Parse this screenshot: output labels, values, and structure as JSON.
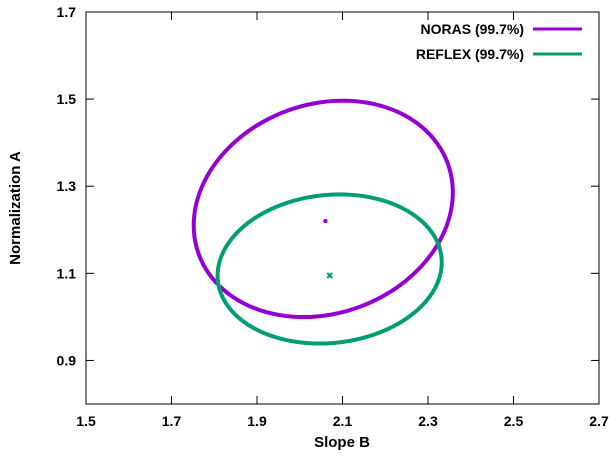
{
  "chart_data": {
    "type": "scatter",
    "xlabel": "Slope B",
    "ylabel": "Normalization A",
    "xlim": [
      1.5,
      2.7
    ],
    "ylim": [
      0.8,
      1.7
    ],
    "x_ticks": [
      "1.5",
      "1.7",
      "1.9",
      "2.1",
      "2.3",
      "2.5",
      "2.7"
    ],
    "y_ticks": [
      "0.9",
      "1.1",
      "1.3",
      "1.5",
      "1.7"
    ],
    "legend_position": "top-right",
    "grid": false,
    "series": [
      {
        "name": "NORAS (99.7%)",
        "color": "#9400d3",
        "best_fit": {
          "x": 2.06,
          "y": 1.22
        },
        "contour": {
          "cx": 2.055,
          "cy": 1.248,
          "x_extent": 0.31,
          "y_extent": 0.24,
          "tilt_deg": -20
        }
      },
      {
        "name": "REFLEX (99.7%)",
        "color": "#009e73",
        "best_fit": {
          "x": 2.07,
          "y": 1.095
        },
        "contour": {
          "cx": 2.07,
          "cy": 1.11,
          "x_extent": 0.263,
          "y_extent": 0.17,
          "tilt_deg": -6
        }
      }
    ]
  }
}
